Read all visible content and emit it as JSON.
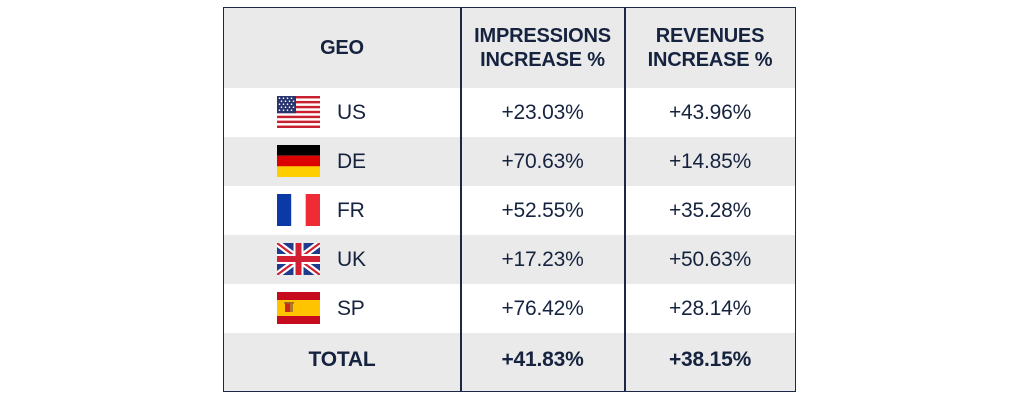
{
  "chart_data": {
    "type": "table",
    "columns": [
      "GEO",
      "IMPRESSIONS INCREASE %",
      "REVENUES INCREASE %"
    ],
    "headers": {
      "geo": "GEO",
      "impressions_line1": "IMPRESSIONS",
      "impressions_line2": "INCREASE %",
      "revenues_line1": "REVENUES",
      "revenues_line2": "INCREASE %"
    },
    "rows": [
      {
        "geo": "US",
        "flag": "us-flag-icon",
        "impressions": "+23.03%",
        "revenues": "+43.96%"
      },
      {
        "geo": "DE",
        "flag": "de-flag-icon",
        "impressions": "+70.63%",
        "revenues": "+14.85%"
      },
      {
        "geo": "FR",
        "flag": "fr-flag-icon",
        "impressions": "+52.55%",
        "revenues": "+35.28%"
      },
      {
        "geo": "UK",
        "flag": "uk-flag-icon",
        "impressions": "+17.23%",
        "revenues": "+50.63%"
      },
      {
        "geo": "SP",
        "flag": "sp-flag-icon",
        "impressions": "+76.42%",
        "revenues": "+28.14%"
      }
    ],
    "total": {
      "label": "TOTAL",
      "impressions": "+41.83%",
      "revenues": "+38.15%"
    }
  },
  "colors": {
    "text": "#16233f",
    "border": "#1c2946",
    "row_alt": "#eaeaea",
    "row_white": "#ffffff"
  }
}
